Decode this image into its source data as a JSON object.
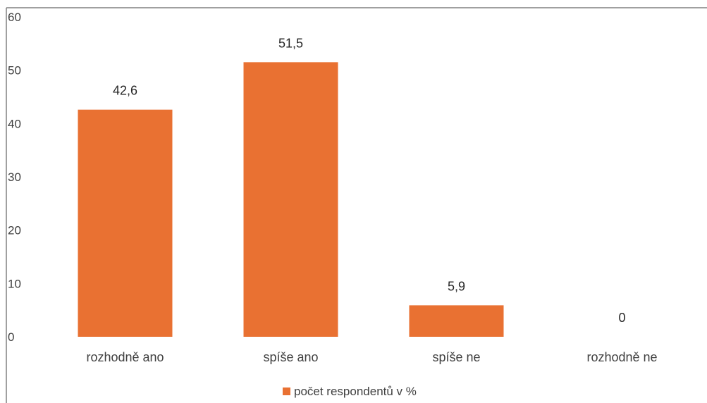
{
  "chart_data": {
    "type": "bar",
    "categories": [
      "rozhodně ano",
      "spíše ano",
      "spíše ne",
      "rozhodně ne"
    ],
    "series": [
      {
        "name": "počet respondentů v %",
        "values": [
          42.6,
          51.5,
          5.9,
          0
        ],
        "color": "#E97132"
      }
    ],
    "data_labels": [
      "42,6",
      "51,5",
      "5,9",
      "0"
    ],
    "y_ticks": [
      "0",
      "10",
      "20",
      "30",
      "40",
      "50",
      "60"
    ],
    "ylim": [
      0,
      60
    ],
    "grid": false,
    "legend_position": "bottom"
  }
}
